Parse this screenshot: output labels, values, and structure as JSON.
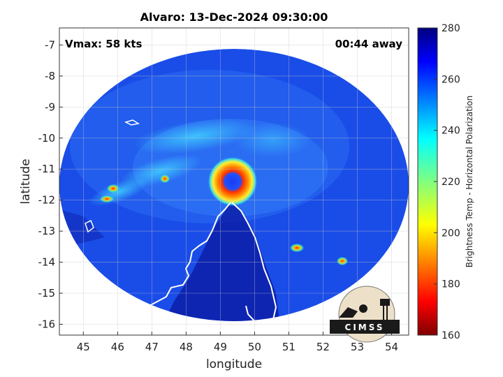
{
  "chart_data": {
    "type": "heatmap",
    "title": "Alvaro: 13-Dec-2024 09:30:00",
    "xlabel": "longitude",
    "ylabel": "latitude",
    "xlim": [
      44.3,
      54.5
    ],
    "ylim": [
      -16.35,
      -6.45
    ],
    "x_ticks": [
      "45",
      "46",
      "47",
      "48",
      "49",
      "50",
      "51",
      "52",
      "53",
      "54"
    ],
    "y_ticks": [
      "-7",
      "-8",
      "-9",
      "-10",
      "-11",
      "-12",
      "-13",
      "-14",
      "-15",
      "-16"
    ],
    "grid": true,
    "annotations": {
      "vmax": "Vmax: 58 kts",
      "away": "00:44 away"
    },
    "colorbar": {
      "label": "Brightness Temp - Horizontal Polarization",
      "range": [
        160,
        280
      ],
      "ticks": [
        "280",
        "260",
        "240",
        "220",
        "200",
        "180",
        "160"
      ],
      "colormap": "jet"
    },
    "storm_center": {
      "lon": 49.3,
      "lat": -11.35
    },
    "logo_text": "CIMSS"
  },
  "colors": {
    "background": "#ffffff",
    "ocean_cold": "#1040d8",
    "coastline": "#ffffff"
  }
}
